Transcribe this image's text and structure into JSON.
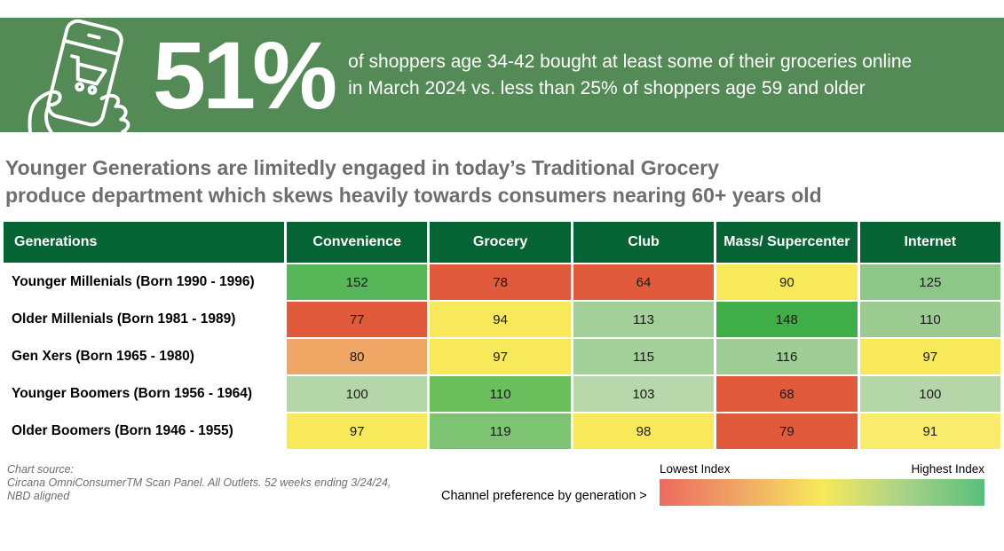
{
  "banner": {
    "bg_color": "#548a55",
    "icon": "hand-holding-phone-shopping-cart-icon",
    "stat": "51%",
    "description_line1": "of shoppers age 34-42 bought at least some of their groceries online",
    "description_line2": "in March 2024 vs. less than 25% of shoppers age 59 and older"
  },
  "headline": {
    "line1": "Younger Generations are limitedly engaged in today’s Traditional Grocery",
    "line2": "produce department which skews heavily towards consumers nearing 60+ years old",
    "color": "#6d6e71"
  },
  "table": {
    "header_bg": "#066434",
    "columns": [
      "Generations",
      "Convenience",
      "Grocery",
      "Club",
      "Mass/ Supercenter",
      "Internet"
    ],
    "rows": [
      {
        "label": "Younger Millenials (Born 1990 - 1996)",
        "values": [
          152,
          78,
          64,
          90,
          125
        ],
        "colors": [
          "#57b657",
          "#e15a3c",
          "#e15a3c",
          "#f8e95a",
          "#8cc787"
        ]
      },
      {
        "label": "Older Millenials (Born 1981 - 1989)",
        "values": [
          77,
          94,
          113,
          148,
          110
        ],
        "colors": [
          "#e15a3c",
          "#f8e95a",
          "#a3cf99",
          "#3fae49",
          "#9ccb91"
        ]
      },
      {
        "label": "Gen Xers (Born 1965 - 1980)",
        "values": [
          80,
          97,
          115,
          116,
          97
        ],
        "colors": [
          "#f0a765",
          "#f8e95a",
          "#a3cf99",
          "#a0cd96",
          "#f8e95a"
        ]
      },
      {
        "label": "Younger Boomers (Born 1956 - 1964)",
        "values": [
          100,
          110,
          103,
          68,
          100
        ],
        "colors": [
          "#b5d6a9",
          "#6cbf5d",
          "#b8d7ab",
          "#e15a3c",
          "#b5d6a9"
        ]
      },
      {
        "label": "Older Boomers (Born 1946 - 1955)",
        "values": [
          97,
          119,
          98,
          79,
          91
        ],
        "colors": [
          "#f8e95a",
          "#7cc471",
          "#f8e95a",
          "#e15a3c",
          "#f9eb6b"
        ]
      }
    ]
  },
  "footer": {
    "source_line1": "Chart source:",
    "source_line2": "Circana OmniConsumerTM Scan Panel. All Outlets. 52 weeks ending 3/24/24,",
    "source_line3": "NBD aligned",
    "legend_caption": "Channel preference by generation >",
    "legend_low_label": "Lowest Index",
    "legend_high_label": "Highest Index",
    "legend_gradient": [
      "#ed6a5f",
      "#f0a765",
      "#f8e95a",
      "#aad289",
      "#57c07b"
    ]
  },
  "chart_data": {
    "type": "heatmap",
    "title": "Younger Generations are limitedly engaged in today’s Traditional Grocery produce department which skews heavily towards consumers nearing 60+ years old",
    "stat_callout": "51% of shoppers age 34-42 bought at least some of their groceries online in March 2024 vs. less than 25% of shoppers age 59 and older",
    "columns": [
      "Convenience",
      "Grocery",
      "Club",
      "Mass/Supercenter",
      "Internet"
    ],
    "rows": [
      "Younger Millenials (Born 1990 - 1996)",
      "Older Millenials (Born 1981 - 1989)",
      "Gen Xers (Born 1965 - 1980)",
      "Younger Boomers (Born 1956 - 1964)",
      "Older Boomers (Born 1946 - 1955)"
    ],
    "values": [
      [
        152,
        78,
        64,
        90,
        125
      ],
      [
        77,
        94,
        113,
        148,
        110
      ],
      [
        80,
        97,
        115,
        116,
        97
      ],
      [
        100,
        110,
        103,
        68,
        100
      ],
      [
        97,
        119,
        98,
        79,
        91
      ]
    ],
    "color_scale": {
      "low_label": "Lowest Index",
      "high_label": "Highest Index",
      "low_color": "#e15a3c",
      "mid_color": "#f8e95a",
      "high_color": "#3fae49"
    },
    "legend_position": "bottom-right"
  }
}
